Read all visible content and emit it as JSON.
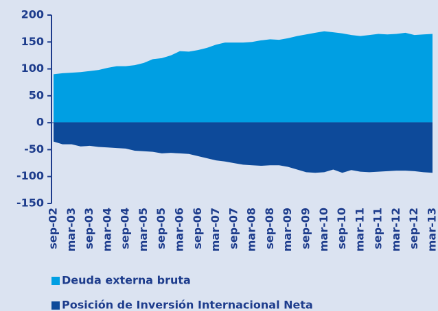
{
  "chart_data": {
    "type": "area",
    "categories": [
      "sep-02",
      null,
      "mar-03",
      null,
      "sep-03",
      null,
      "mar-04",
      null,
      "sep-04",
      null,
      "mar-05",
      null,
      "sep-05",
      null,
      "mar-06",
      null,
      "sep-06",
      null,
      "mar-07",
      null,
      "sep-07",
      null,
      "mar-08",
      null,
      "sep-08",
      null,
      "mar-09",
      null,
      "sep-09",
      null,
      "mar-10",
      null,
      "sep-10",
      null,
      "mar-11",
      null,
      "sep-11",
      null,
      "mar-12",
      null,
      "sep-12",
      null,
      "mar-13"
    ],
    "series": [
      {
        "name": "Deuda externa bruta",
        "color": "#009fe3",
        "values": [
          90,
          92,
          93,
          94,
          96,
          98,
          102,
          105,
          105,
          107,
          111,
          118,
          120,
          125,
          133,
          132,
          135,
          139,
          145,
          149,
          149,
          149,
          150,
          153,
          155,
          154,
          157,
          161,
          164,
          167,
          170,
          168,
          166,
          163,
          161,
          163,
          165,
          164,
          165,
          167,
          163,
          164,
          165
        ]
      },
      {
        "name": "Posición de Inversión Internacional Neta",
        "color": "#0d4a9a",
        "values": [
          -35,
          -40,
          -40,
          -44,
          -43,
          -45,
          -46,
          -47,
          -48,
          -52,
          -53,
          -54,
          -57,
          -56,
          -57,
          -58,
          -62,
          -66,
          -70,
          -72,
          -75,
          -78,
          -79,
          -80,
          -79,
          -79,
          -82,
          -87,
          -92,
          -93,
          -92,
          -87,
          -93,
          -88,
          -91,
          -92,
          -91,
          -90,
          -89,
          -89,
          -90,
          -92,
          -93
        ]
      }
    ],
    "ylim": [
      -150,
      200
    ],
    "yticks": [
      -150,
      -100,
      -50,
      0,
      50,
      100,
      150,
      200
    ]
  }
}
